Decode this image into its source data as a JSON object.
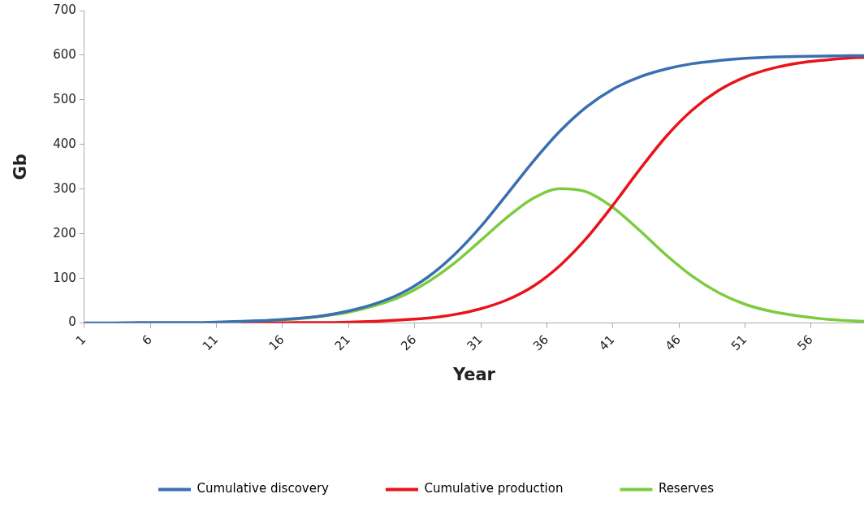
{
  "chart_data": {
    "type": "line",
    "xlabel": "Year",
    "ylabel": "Gb",
    "x": [
      1,
      3,
      5,
      7,
      9,
      11,
      13,
      15,
      17,
      19,
      21,
      23,
      25,
      27,
      29,
      31,
      33,
      35,
      37,
      39,
      41,
      43,
      45,
      47,
      49,
      51,
      53,
      55,
      57,
      59,
      60
    ],
    "series": [
      {
        "name": "Cumulative discovery",
        "color": "#3a6fb0",
        "values": [
          0,
          0,
          1,
          1,
          1,
          2,
          4,
          6,
          10,
          16,
          27,
          43,
          67,
          103,
          153,
          216,
          289,
          363,
          430,
          484,
          524,
          551,
          569,
          581,
          588,
          593,
          596,
          597,
          598,
          599,
          599
        ]
      },
      {
        "name": "Cumulative production",
        "color": "#e8131b",
        "values": [
          null,
          null,
          null,
          null,
          null,
          null,
          0,
          0,
          1,
          1,
          2,
          4,
          7,
          11,
          19,
          32,
          52,
          83,
          129,
          190,
          264,
          343,
          417,
          477,
          521,
          551,
          570,
          582,
          589,
          594,
          595
        ]
      },
      {
        "name": "Reserves",
        "color": "#7ccc3f",
        "values": [
          null,
          null,
          null,
          null,
          null,
          null,
          null,
          6,
          9,
          15,
          24,
          39,
          60,
          92,
          134,
          185,
          237,
          280,
          301,
          294,
          259,
          208,
          153,
          105,
          68,
          42,
          26,
          16,
          9,
          5,
          4
        ]
      }
    ],
    "xlim": [
      1,
      60
    ],
    "xticks": [
      1,
      6,
      11,
      16,
      21,
      26,
      31,
      36,
      41,
      46,
      51,
      56
    ],
    "ylim": [
      0,
      700
    ],
    "yticks": [
      0,
      100,
      200,
      300,
      400,
      500,
      600,
      700
    ],
    "grid": false,
    "legend": "bottom",
    "marker": "none",
    "line_style": "solid"
  }
}
